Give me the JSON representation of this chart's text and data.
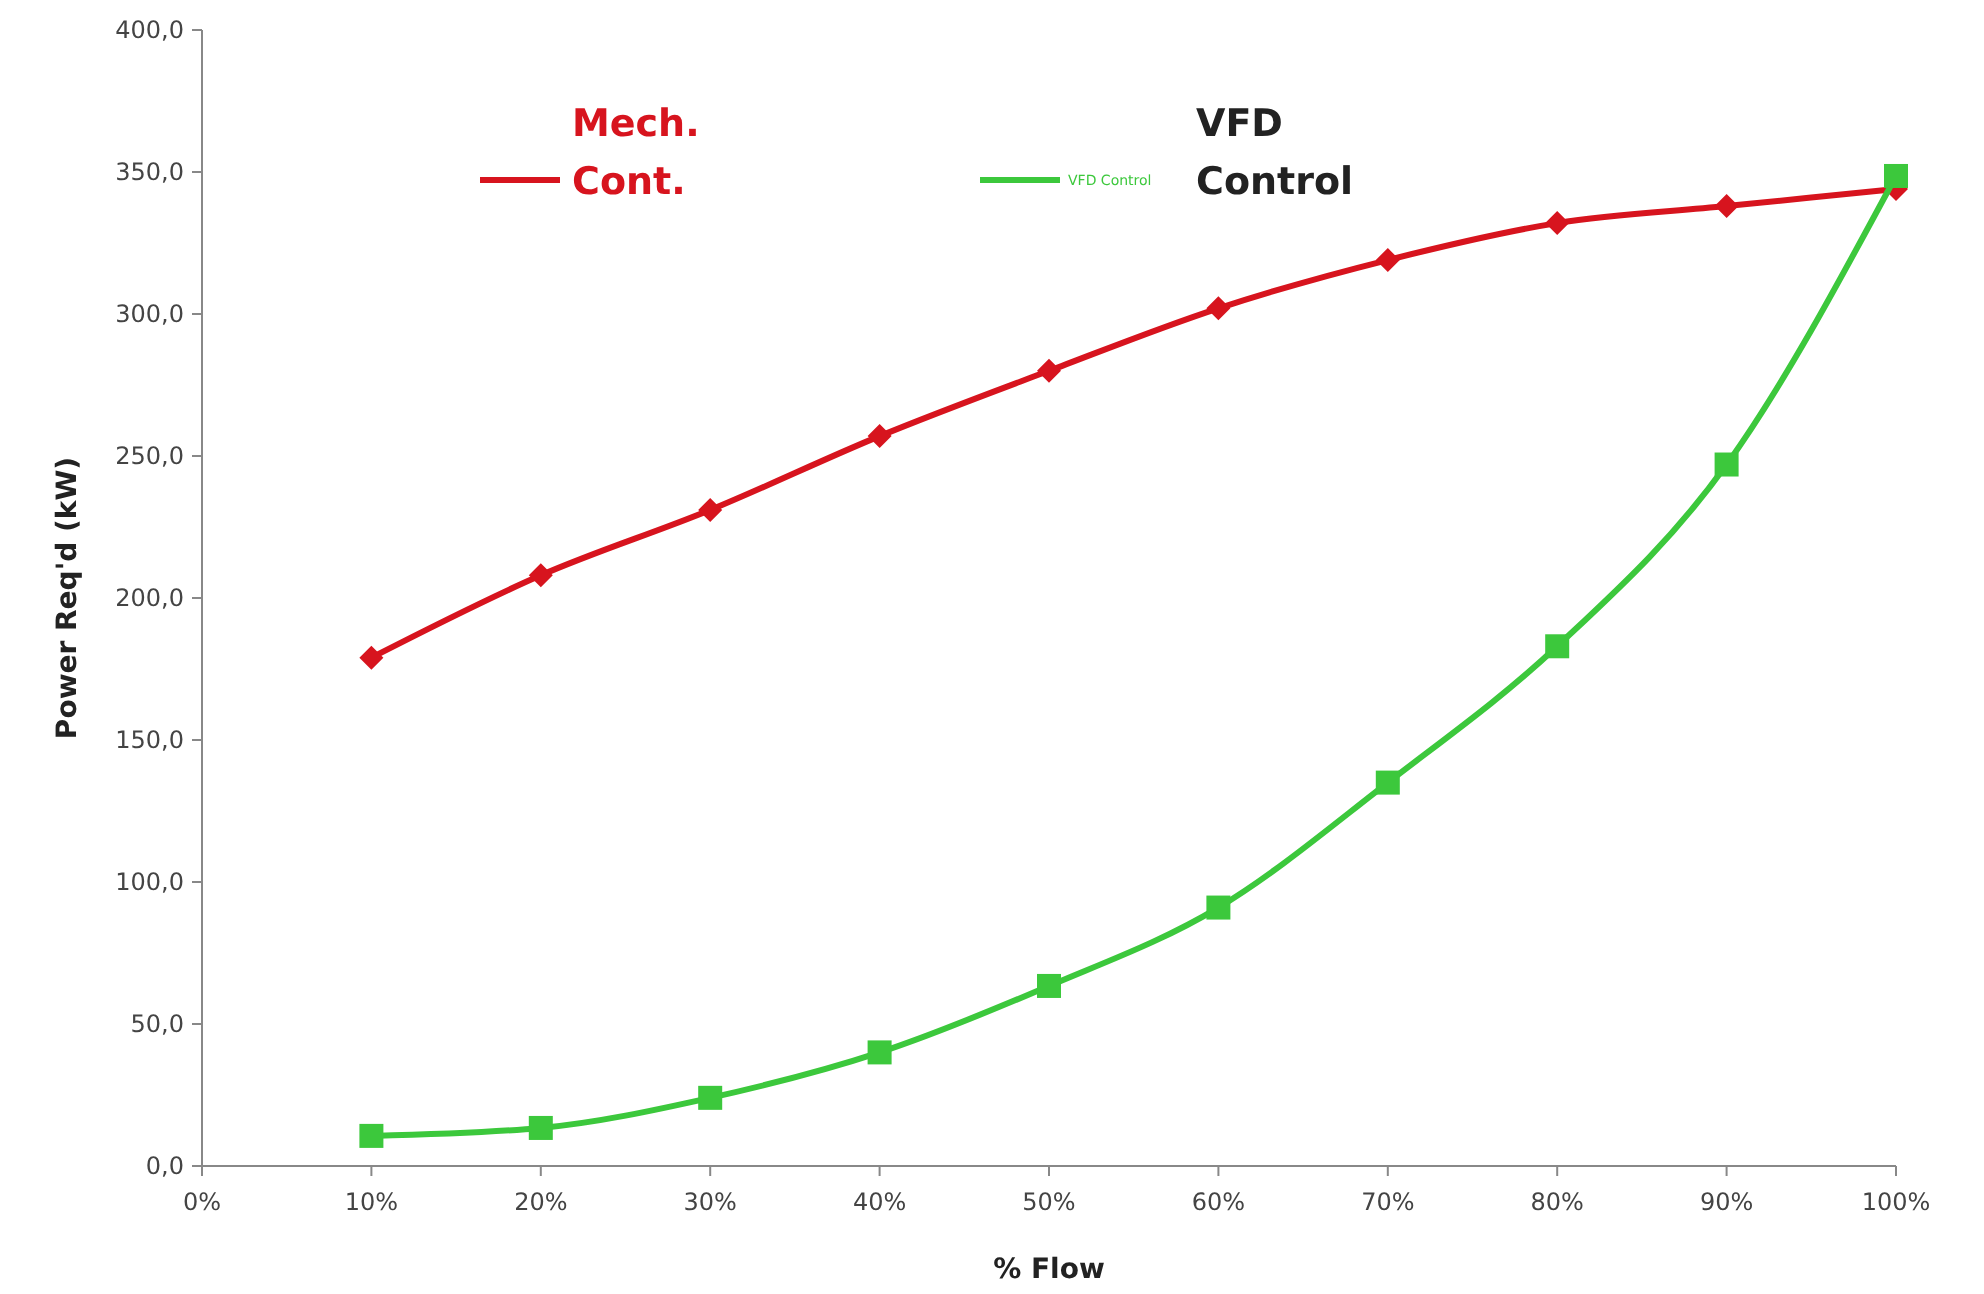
{
  "chart_data": {
    "type": "line",
    "xlabel": "% Flow",
    "ylabel": "Power Req'd (kW)",
    "x": [
      10,
      20,
      30,
      40,
      50,
      60,
      70,
      80,
      90,
      100
    ],
    "series": [
      {
        "name": "Mech. Cont.",
        "color": "#d7141e",
        "marker": "diamond",
        "values": [
          179,
          208,
          231,
          257,
          280,
          302,
          319,
          332,
          338,
          344
        ]
      },
      {
        "name": "VFD Control",
        "color": "#3cc83c",
        "marker": "square",
        "values": [
          10.6,
          13.4,
          24,
          40,
          63.4,
          91,
          135,
          183,
          247,
          348.6
        ]
      }
    ],
    "xlim": [
      0,
      100
    ],
    "xticks": [
      {
        "value": 0,
        "label": "0%"
      },
      {
        "value": 10,
        "label": "10%"
      },
      {
        "value": 20,
        "label": "20%"
      },
      {
        "value": 30,
        "label": "30%"
      },
      {
        "value": 40,
        "label": "40%"
      },
      {
        "value": 50,
        "label": "50%"
      },
      {
        "value": 60,
        "label": "60%"
      },
      {
        "value": 70,
        "label": "70%"
      },
      {
        "value": 80,
        "label": "80%"
      },
      {
        "value": 90,
        "label": "90%"
      },
      {
        "value": 100,
        "label": "100%"
      }
    ],
    "ylim": [
      0,
      400
    ],
    "yticks": [
      {
        "value": 0,
        "label": "0,0"
      },
      {
        "value": 50,
        "label": "50,0"
      },
      {
        "value": 100,
        "label": "100,0"
      },
      {
        "value": 150,
        "label": "150,0"
      },
      {
        "value": 200,
        "label": "200,0"
      },
      {
        "value": 250,
        "label": "250,0"
      },
      {
        "value": 300,
        "label": "300,0"
      },
      {
        "value": 350,
        "label": "350,0"
      },
      {
        "value": 400,
        "label": "400,0"
      }
    ],
    "annotations": [
      "VFD Control"
    ],
    "grid": false,
    "legend": "top left",
    "line_style": "solid"
  }
}
